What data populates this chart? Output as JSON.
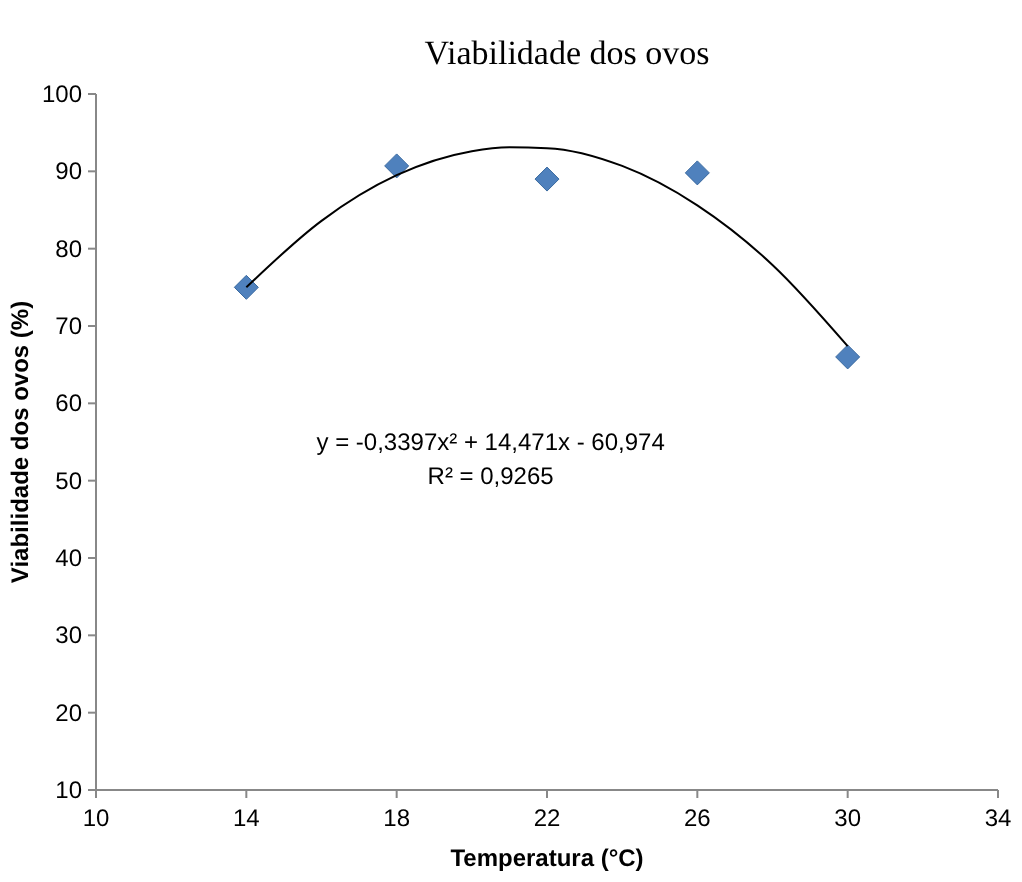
{
  "chart_data": {
    "type": "scatter",
    "title": "Viabilidade dos ovos",
    "xlabel": "Temperatura (°C)",
    "ylabel": "Viabilidade dos ovos (%)",
    "x": [
      14,
      18,
      22,
      26,
      30
    ],
    "series": [
      {
        "color": "#4f81bd",
        "marker": "diamond",
        "values": [
          75,
          90.7,
          89,
          89.8,
          66
        ]
      },
      {
        "type": "line",
        "color": "#000000",
        "marker": "none",
        "x": [
          14,
          16,
          18,
          20,
          21,
          22,
          24,
          26,
          28,
          30
        ],
        "values": [
          75.0,
          83.6,
          89.5,
          92.6,
          93.1,
          93.0,
          90.7,
          85.6,
          77.9,
          67.4
        ]
      }
    ],
    "xlim": [
      10,
      34
    ],
    "xticks": [
      10,
      14,
      18,
      22,
      26,
      30,
      34
    ],
    "ylim": [
      10,
      100
    ],
    "yticks": [
      10,
      20,
      30,
      40,
      50,
      60,
      70,
      80,
      90,
      100
    ],
    "grid": false,
    "annotations": [
      "y = -0,3397x² + 14,471x - 60,974",
      "R² = 0,9265"
    ]
  }
}
